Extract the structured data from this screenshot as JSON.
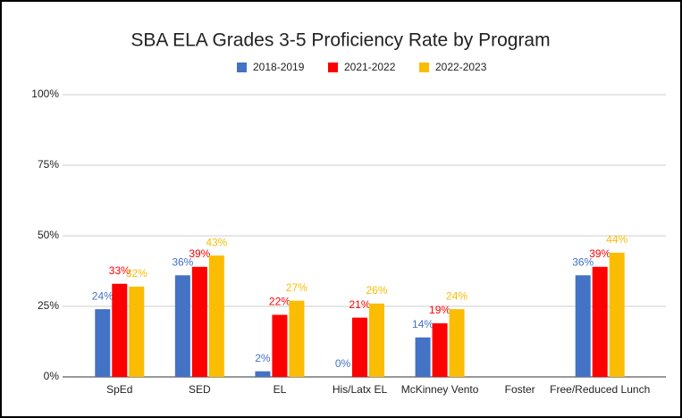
{
  "chart_data": {
    "type": "bar",
    "title": "SBA ELA Grades 3-5 Proficiency Rate by Program",
    "categories": [
      "SpEd",
      "SED",
      "EL",
      "His/Latx EL",
      "McKinney Vento",
      "Foster",
      "Free/Reduced Lunch"
    ],
    "series": [
      {
        "name": "2018-2019",
        "color": "#4472c4",
        "values": [
          24,
          36,
          2,
          0,
          14,
          null,
          36
        ],
        "value_labels": [
          "24%",
          "36%",
          "2%",
          "0%",
          "14%",
          null,
          "36%"
        ]
      },
      {
        "name": "2021-2022",
        "color": "#ff0000",
        "values": [
          33,
          39,
          22,
          21,
          19,
          null,
          39
        ],
        "value_labels": [
          "33%",
          "39%",
          "22%",
          "21%",
          "19%",
          null,
          "39%"
        ]
      },
      {
        "name": "2022-2023",
        "color": "#fbbc04",
        "values": [
          32,
          43,
          27,
          26,
          24,
          null,
          44
        ],
        "value_labels": [
          "32%",
          "43%",
          "27%",
          "26%",
          "24%",
          null,
          "44%"
        ]
      }
    ],
    "ylim": [
      0,
      100
    ],
    "yticks": [
      {
        "value": 0,
        "label": "0%"
      },
      {
        "value": 25,
        "label": "25%"
      },
      {
        "value": 50,
        "label": "50%"
      },
      {
        "value": 75,
        "label": "75%"
      },
      {
        "value": 100,
        "label": "100%"
      }
    ],
    "grid": true,
    "legend": "top"
  }
}
